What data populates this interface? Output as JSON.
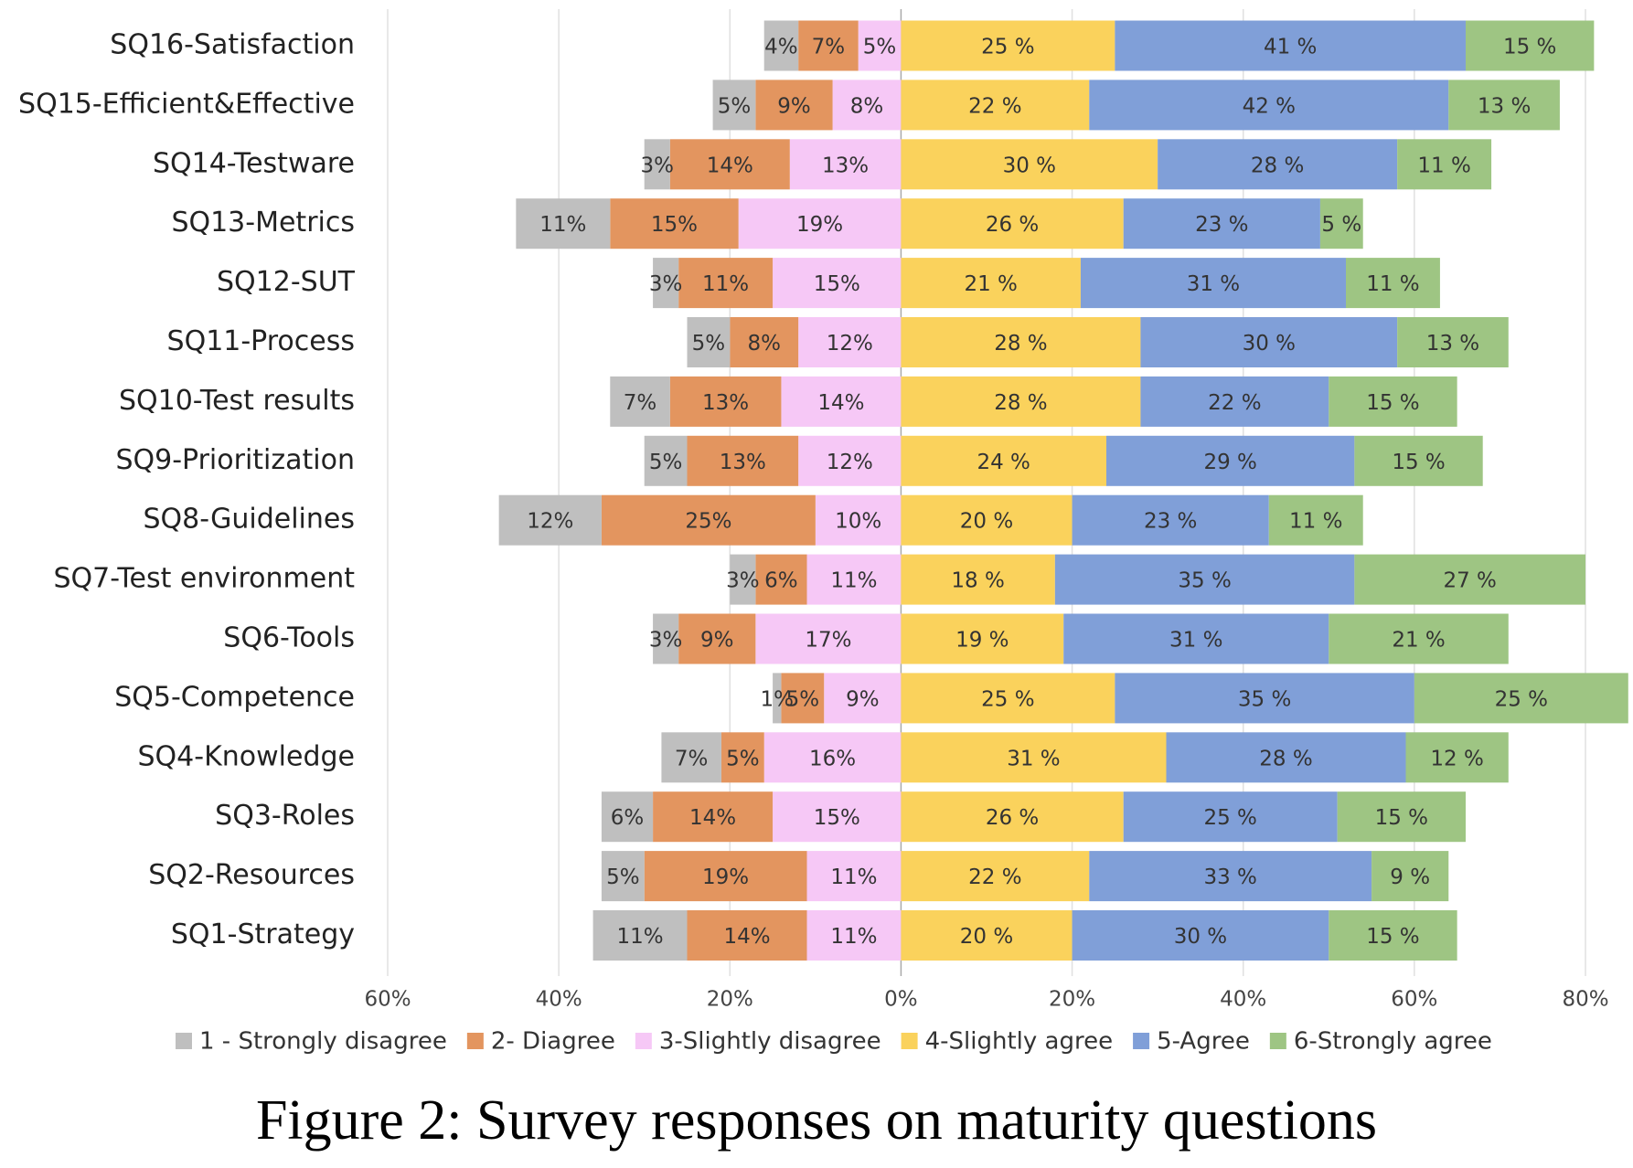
{
  "chart_data": {
    "type": "diverging-bar",
    "caption": "Figure 2: Survey responses on maturity questions",
    "categories": [
      "SQ16-Satisfaction",
      "SQ15-Efficient&Effective",
      "SQ14-Testware",
      "SQ13-Metrics",
      "SQ12-SUT",
      "SQ11-Process",
      "SQ10-Test results",
      "SQ9-Prioritization",
      "SQ8-Guidelines",
      "SQ7-Test environment",
      "SQ6-Tools",
      "SQ5-Competence",
      "SQ4-Knowledge",
      "SQ3-Roles",
      "SQ2-Resources",
      "SQ1-Strategy"
    ],
    "series": [
      {
        "name": "1 - Strongly disagree",
        "color": "#bfbfbf",
        "values": [
          -4,
          -5,
          -3,
          -11,
          -3,
          -5,
          -7,
          -5,
          -12,
          -3,
          -3,
          -1,
          -7,
          -6,
          -5,
          -11
        ],
        "value_labels": [
          "4%",
          "5%",
          "3%",
          "11%",
          "3%",
          "5%",
          "7%",
          "5%",
          "12%",
          "3%",
          "3%",
          "1%",
          "7%",
          "6%",
          "5%",
          "11%"
        ]
      },
      {
        "name": "2- Diagree",
        "color": "#e3955f",
        "values": [
          -7,
          -9,
          -14,
          -15,
          -11,
          -8,
          -13,
          -13,
          -25,
          -6,
          -9,
          -5,
          -5,
          -14,
          -19,
          -14
        ],
        "value_labels": [
          "7%",
          "9%",
          "14%",
          "15%",
          "11%",
          "8%",
          "13%",
          "13%",
          "25%",
          "6%",
          "9%",
          "5%",
          "5%",
          "14%",
          "19%",
          "14%"
        ]
      },
      {
        "name": "3-Slightly disagree",
        "color": "#f6c8f6",
        "values": [
          -5,
          -8,
          -13,
          -19,
          -15,
          -12,
          -14,
          -12,
          -10,
          -11,
          -17,
          -9,
          -16,
          -15,
          -11,
          -11
        ],
        "value_labels": [
          "5%",
          "8%",
          "13%",
          "19%",
          "15%",
          "12%",
          "14%",
          "12%",
          "10%",
          "11%",
          "17%",
          "9%",
          "16%",
          "15%",
          "11%",
          "11%"
        ]
      },
      {
        "name": "4-Slightly agree",
        "color": "#fad25c",
        "values": [
          25,
          22,
          30,
          26,
          21,
          28,
          28,
          24,
          20,
          18,
          19,
          25,
          31,
          26,
          22,
          20
        ],
        "value_labels": [
          "25 %",
          "22 %",
          "30 %",
          "26 %",
          "21 %",
          "28 %",
          "28 %",
          "24 %",
          "20 %",
          "18 %",
          "19 %",
          "25 %",
          "31 %",
          "26 %",
          "22 %",
          "20 %"
        ]
      },
      {
        "name": "5-Agree",
        "color": "#809fd8",
        "values": [
          41,
          42,
          28,
          23,
          31,
          30,
          22,
          29,
          23,
          35,
          31,
          35,
          28,
          25,
          33,
          30
        ],
        "value_labels": [
          "41 %",
          "42 %",
          "28 %",
          "23 %",
          "31 %",
          "30 %",
          "22 %",
          "29 %",
          "23 %",
          "35 %",
          "31 %",
          "35 %",
          "28 %",
          "25 %",
          "33 %",
          "30 %"
        ]
      },
      {
        "name": "6-Strongly agree",
        "color": "#9ec583",
        "values": [
          15,
          13,
          11,
          5,
          11,
          13,
          15,
          15,
          11,
          27,
          21,
          25,
          12,
          15,
          9,
          15
        ],
        "value_labels": [
          "15 %",
          "13 %",
          "11 %",
          "5 %",
          "11 %",
          "13 %",
          "15 %",
          "15 %",
          "11 %",
          "27 %",
          "21 %",
          "25 %",
          "12 %",
          "15 %",
          "9 %",
          "15 %"
        ]
      }
    ],
    "xlim": [
      -60,
      85
    ],
    "xticks": [
      {
        "value": -60,
        "label": "60%"
      },
      {
        "value": -40,
        "label": "40%"
      },
      {
        "value": -20,
        "label": "20%"
      },
      {
        "value": 0,
        "label": "0%"
      },
      {
        "value": 20,
        "label": "20%"
      },
      {
        "value": 40,
        "label": "40%"
      },
      {
        "value": 60,
        "label": "60%"
      },
      {
        "value": 80,
        "label": "80%"
      }
    ],
    "grid": true
  }
}
